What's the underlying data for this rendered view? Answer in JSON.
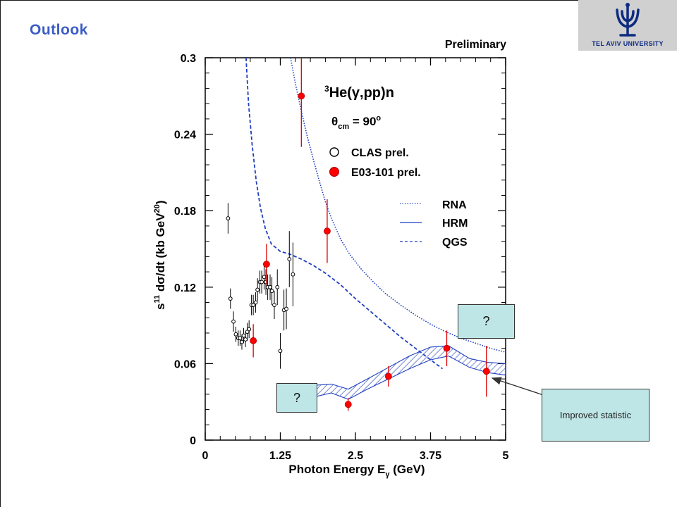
{
  "slide": {
    "title": "Outlook"
  },
  "logo": {
    "text": "TEL AVIV UNIVERSITY"
  },
  "callouts": {
    "q1": "?",
    "q2": "?",
    "note": "Improved statistic"
  },
  "chart_data": {
    "type": "scatter",
    "corner_label": "Preliminary",
    "reaction_label": {
      "sup": "3",
      "main": "He(γ,pp)n"
    },
    "theta_label": {
      "sym": "θ",
      "sub": "cm",
      "rest": " = 90",
      "sup": "o"
    },
    "xlabel": {
      "main": "Photon Energy E",
      "sub": "γ",
      "rest": " (GeV)"
    },
    "ylabel": {
      "sup": "11",
      "main": " dσ/dt (kb GeV",
      "sup2": "20",
      "end": ")"
    },
    "xlim": [
      0,
      5
    ],
    "ylim": [
      0,
      0.3
    ],
    "x_ticks": [
      "0",
      "1.25",
      "2.5",
      "3.75",
      "5"
    ],
    "x_tick_values": [
      0,
      1.25,
      2.5,
      3.75,
      5
    ],
    "y_ticks": [
      "0",
      "0.06",
      "0.12",
      "0.18",
      "0.24",
      "0.3"
    ],
    "y_tick_values": [
      0,
      0.06,
      0.12,
      0.18,
      0.24,
      0.3
    ],
    "legend_placement": "top-right",
    "series": [
      {
        "name": "CLAS prel.",
        "marker": "open-circle",
        "points": [
          [
            0.38,
            0.174,
            0.012
          ],
          [
            0.42,
            0.111,
            0.008
          ],
          [
            0.47,
            0.093,
            0.008
          ],
          [
            0.51,
            0.083,
            0.006
          ],
          [
            0.55,
            0.08,
            0.006
          ],
          [
            0.58,
            0.08,
            0.006
          ],
          [
            0.61,
            0.077,
            0.006
          ],
          [
            0.64,
            0.082,
            0.006
          ],
          [
            0.67,
            0.079,
            0.006
          ],
          [
            0.7,
            0.085,
            0.007
          ],
          [
            0.73,
            0.087,
            0.007
          ],
          [
            0.77,
            0.106,
            0.008
          ],
          [
            0.8,
            0.106,
            0.008
          ],
          [
            0.84,
            0.108,
            0.008
          ],
          [
            0.87,
            0.118,
            0.009
          ],
          [
            0.91,
            0.124,
            0.009
          ],
          [
            0.94,
            0.124,
            0.009
          ],
          [
            0.98,
            0.128,
            0.01
          ],
          [
            1.01,
            0.124,
            0.01
          ],
          [
            1.04,
            0.12,
            0.01
          ],
          [
            1.08,
            0.12,
            0.01
          ],
          [
            1.11,
            0.117,
            0.011
          ],
          [
            1.15,
            0.106,
            0.011
          ],
          [
            1.2,
            0.12,
            0.014
          ],
          [
            1.25,
            0.07,
            0.014
          ],
          [
            1.31,
            0.102,
            0.016
          ],
          [
            1.35,
            0.103,
            0.016
          ],
          [
            1.4,
            0.142,
            0.022
          ],
          [
            1.46,
            0.13,
            0.025
          ]
        ]
      },
      {
        "name": "E03-101 prel.",
        "marker": "filled-circle",
        "points": [
          [
            0.8,
            0.078,
            0.013
          ],
          [
            1.02,
            0.138,
            0.016
          ],
          [
            1.6,
            0.27,
            0.04
          ],
          [
            2.03,
            0.164,
            0.025
          ],
          [
            2.38,
            0.028,
            0.005
          ],
          [
            3.05,
            0.05,
            0.008
          ],
          [
            4.02,
            0.072,
            0.014
          ],
          [
            4.68,
            0.054,
            0.02
          ]
        ]
      },
      {
        "name": "RNA",
        "style": "dotted",
        "x": [
          1.42,
          1.5,
          1.6,
          1.7,
          1.8,
          1.9,
          2.0,
          2.1,
          2.25,
          2.4,
          2.6,
          2.8,
          3.0,
          3.25,
          3.5,
          3.75,
          4.0,
          4.25,
          4.5,
          4.75,
          5.0
        ],
        "y": [
          0.3,
          0.28,
          0.258,
          0.238,
          0.22,
          0.203,
          0.187,
          0.174,
          0.158,
          0.146,
          0.134,
          0.124,
          0.115,
          0.106,
          0.098,
          0.091,
          0.085,
          0.08,
          0.076,
          0.072,
          0.069
        ]
      },
      {
        "name": "HRM",
        "style": "band",
        "x": [
          1.82,
          2.1,
          2.38,
          2.7,
          3.05,
          3.4,
          3.75,
          4.05,
          4.4,
          4.7,
          5.0
        ],
        "y_low": [
          0.034,
          0.037,
          0.032,
          0.04,
          0.048,
          0.056,
          0.063,
          0.066,
          0.057,
          0.053,
          0.051
        ],
        "y_high": [
          0.043,
          0.044,
          0.04,
          0.048,
          0.057,
          0.066,
          0.073,
          0.074,
          0.064,
          0.061,
          0.06
        ]
      },
      {
        "name": "QGS",
        "style": "dashed",
        "x": [
          0.68,
          0.72,
          0.78,
          0.85,
          0.92,
          1.0,
          1.1,
          1.25,
          1.4,
          1.6,
          1.8,
          2.0,
          2.25,
          2.5,
          2.75,
          3.0,
          3.25,
          3.5,
          3.75,
          3.95
        ],
        "y": [
          0.3,
          0.265,
          0.232,
          0.203,
          0.182,
          0.166,
          0.154,
          0.148,
          0.146,
          0.142,
          0.137,
          0.131,
          0.122,
          0.111,
          0.101,
          0.091,
          0.081,
          0.072,
          0.063,
          0.056
        ]
      }
    ]
  }
}
